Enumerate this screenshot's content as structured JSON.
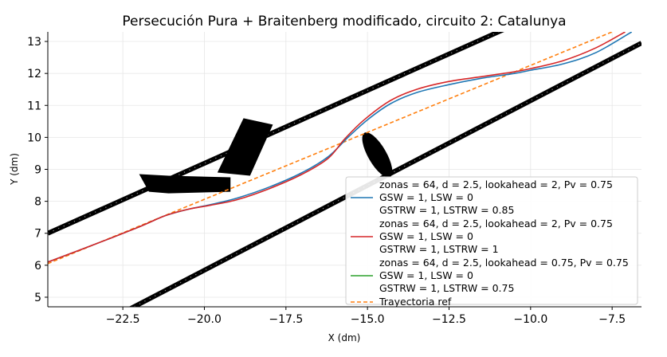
{
  "chart_data": {
    "type": "line",
    "title": "Persecución Pura + Braitenberg modificado, circuito 2: Catalunya",
    "xlabel": "X (dm)",
    "ylabel": "Y (dm)",
    "xlim": [
      -24.8,
      -6.6
    ],
    "ylim": [
      4.7,
      13.3
    ],
    "xticks": [
      -22.5,
      -20.0,
      -17.5,
      -15.0,
      -12.5,
      -10.0,
      -7.5
    ],
    "xtick_labels": [
      "−22.5",
      "−20.0",
      "−17.5",
      "−15.0",
      "−12.5",
      "−10.0",
      "−7.5"
    ],
    "yticks": [
      5,
      6,
      7,
      8,
      9,
      10,
      11,
      12,
      13
    ],
    "ytick_labels": [
      "5",
      "6",
      "7",
      "8",
      "9",
      "10",
      "11",
      "12",
      "13"
    ],
    "grid": true,
    "legend_position": "lower-right",
    "walls": [
      {
        "points": [
          [
            -24.8,
            7.0
          ],
          [
            -6.6,
            15.3
          ]
        ]
      },
      {
        "points": [
          [
            -24.8,
            3.3
          ],
          [
            -6.6,
            12.95
          ]
        ]
      }
    ],
    "obstacles": [
      {
        "shape": "wedge",
        "points": [
          [
            -22.0,
            8.85
          ],
          [
            -21.1,
            8.8
          ],
          [
            -19.2,
            8.75
          ],
          [
            -19.2,
            8.3
          ],
          [
            -21.1,
            8.25
          ],
          [
            -21.7,
            8.3
          ]
        ]
      },
      {
        "shape": "bar",
        "points": [
          [
            -19.6,
            8.9
          ],
          [
            -18.8,
            10.6
          ],
          [
            -17.9,
            10.4
          ],
          [
            -18.6,
            8.8
          ]
        ]
      },
      {
        "shape": "ellipse",
        "center": [
          -14.7,
          9.45
        ],
        "rx": 0.28,
        "ry": 0.8,
        "rotation_deg": -30
      }
    ],
    "series": [
      {
        "name_lines": [
          "zonas = 64, d = 2.5, lookahead = 2, Pv = 0.75",
          "GSW = 1, LSW = 0",
          "GSTRW = 1, LSTRW = 0.85"
        ],
        "color": "#1f77b4",
        "style": "solid",
        "points": [
          [
            -24.8,
            6.1
          ],
          [
            -23.5,
            6.6
          ],
          [
            -22.0,
            7.2
          ],
          [
            -21.2,
            7.55
          ],
          [
            -20.5,
            7.75
          ],
          [
            -19.8,
            7.9
          ],
          [
            -19.0,
            8.1
          ],
          [
            -18.0,
            8.45
          ],
          [
            -17.0,
            8.9
          ],
          [
            -16.2,
            9.4
          ],
          [
            -15.6,
            10.0
          ],
          [
            -15.0,
            10.55
          ],
          [
            -14.3,
            11.05
          ],
          [
            -13.5,
            11.4
          ],
          [
            -12.5,
            11.65
          ],
          [
            -11.5,
            11.85
          ],
          [
            -10.5,
            12.0
          ],
          [
            -10.0,
            12.1
          ],
          [
            -9.0,
            12.3
          ],
          [
            -8.0,
            12.65
          ],
          [
            -6.9,
            13.3
          ]
        ]
      },
      {
        "name_lines": [
          "zonas = 64, d = 2.5, lookahead = 2, Pv = 0.75",
          "GSW = 1, LSW = 0",
          "GSTRW = 1, LSTRW = 1"
        ],
        "color": "#d62728",
        "style": "solid",
        "points": [
          [
            -24.8,
            6.1
          ],
          [
            -23.5,
            6.6
          ],
          [
            -22.0,
            7.2
          ],
          [
            -21.2,
            7.55
          ],
          [
            -20.5,
            7.75
          ],
          [
            -19.8,
            7.88
          ],
          [
            -19.0,
            8.05
          ],
          [
            -18.0,
            8.4
          ],
          [
            -17.0,
            8.85
          ],
          [
            -16.2,
            9.35
          ],
          [
            -15.7,
            9.95
          ],
          [
            -15.1,
            10.55
          ],
          [
            -14.3,
            11.15
          ],
          [
            -13.5,
            11.5
          ],
          [
            -12.5,
            11.75
          ],
          [
            -11.5,
            11.9
          ],
          [
            -10.5,
            12.05
          ],
          [
            -10.0,
            12.15
          ],
          [
            -9.0,
            12.4
          ],
          [
            -8.0,
            12.8
          ],
          [
            -7.1,
            13.3
          ]
        ]
      },
      {
        "name_lines": [
          "zonas = 64, d = 2.5, lookahead = 0.75, Pv = 0.75",
          "GSW = 1, LSW = 0",
          "GSTRW = 1, LSTRW = 0.75"
        ],
        "color": "#2ca02c",
        "style": "solid",
        "points": []
      },
      {
        "name_lines": [
          "Trayectoria ref"
        ],
        "color": "#ff7f0e",
        "style": "dashed",
        "points": [
          [
            -24.8,
            6.05
          ],
          [
            -7.5,
            13.3
          ]
        ]
      }
    ]
  }
}
